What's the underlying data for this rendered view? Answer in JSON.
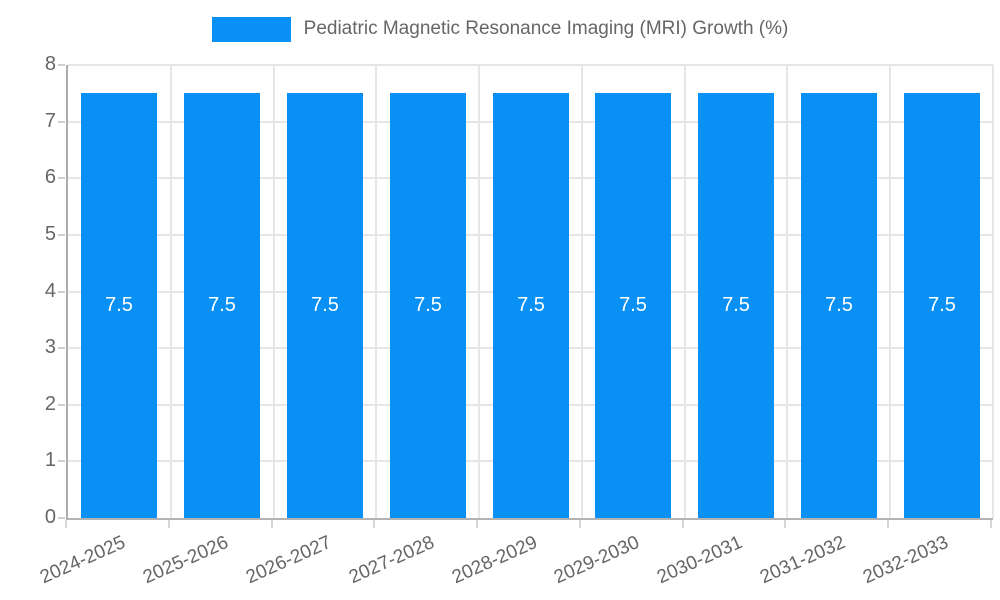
{
  "legend": {
    "label": "Pediatric Magnetic Resonance Imaging (MRI) Growth (%)"
  },
  "chart_data": {
    "type": "bar",
    "title": "Pediatric Magnetic Resonance Imaging (MRI) Growth (%)",
    "categories": [
      "2024-2025",
      "2025-2026",
      "2026-2027",
      "2027-2028",
      "2028-2029",
      "2029-2030",
      "2030-2031",
      "2031-2032",
      "2032-2033"
    ],
    "values": [
      7.5,
      7.5,
      7.5,
      7.5,
      7.5,
      7.5,
      7.5,
      7.5,
      7.5
    ],
    "bar_labels": [
      "7.5",
      "7.5",
      "7.5",
      "7.5",
      "7.5",
      "7.5",
      "7.5",
      "7.5",
      "7.5"
    ],
    "xlabel": "",
    "ylabel": "",
    "ylim": [
      0,
      8
    ],
    "y_ticks": [
      0,
      1,
      2,
      3,
      4,
      5,
      6,
      7,
      8
    ],
    "grid": true,
    "legend_position": "top",
    "bar_color": "#0990f5",
    "value_label_color": "#ffffff",
    "grid_color": "#e6e6e6",
    "axis_color": "#acacac",
    "tick_text_color": "#666666"
  }
}
